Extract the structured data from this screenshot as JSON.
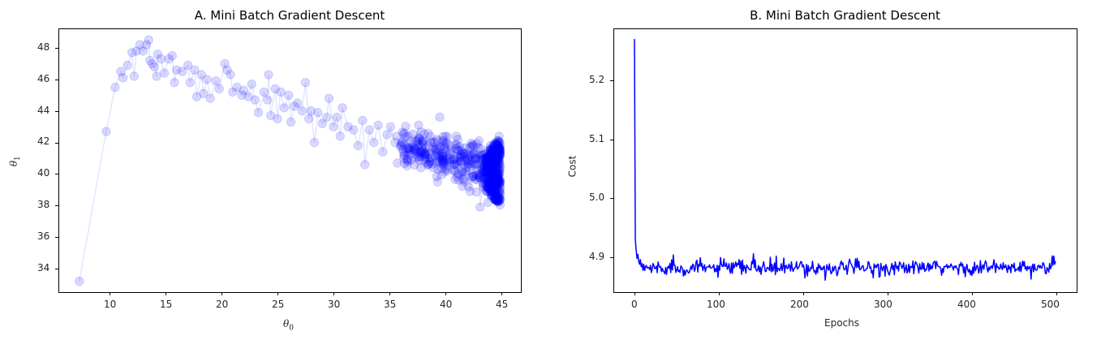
{
  "chart_data": [
    {
      "type": "scatter",
      "title": "A. Mini Batch Gradient Descent",
      "xlabel": "θ0",
      "ylabel": "θ1",
      "xlim": [
        5.3,
        46.6
      ],
      "ylim": [
        32.5,
        49.2
      ],
      "xticks": [
        10,
        15,
        20,
        25,
        30,
        35,
        40,
        45
      ],
      "yticks": [
        34,
        36,
        38,
        40,
        42,
        44,
        46,
        48
      ],
      "grid": false,
      "marker": "o",
      "color": "#0000ff",
      "alpha": 0.15,
      "connected": true,
      "path_points": [
        [
          7.3,
          33.2
        ],
        [
          9.7,
          42.7
        ],
        [
          10.5,
          45.5
        ],
        [
          11.0,
          46.5
        ],
        [
          11.2,
          46.1
        ],
        [
          11.6,
          46.9
        ],
        [
          12.0,
          47.7
        ],
        [
          12.2,
          46.2
        ],
        [
          12.4,
          47.8
        ],
        [
          12.7,
          48.2
        ],
        [
          13.0,
          47.8
        ],
        [
          13.3,
          48.2
        ],
        [
          13.5,
          48.5
        ],
        [
          13.6,
          47.2
        ],
        [
          13.8,
          47.0
        ],
        [
          14.0,
          46.8
        ],
        [
          14.2,
          46.2
        ],
        [
          14.3,
          47.6
        ],
        [
          14.6,
          47.3
        ],
        [
          14.9,
          46.4
        ],
        [
          15.3,
          47.3
        ],
        [
          15.6,
          47.5
        ],
        [
          15.8,
          45.8
        ],
        [
          16.0,
          46.6
        ],
        [
          16.5,
          46.5
        ],
        [
          17.0,
          46.9
        ],
        [
          17.2,
          45.8
        ],
        [
          17.6,
          46.6
        ],
        [
          17.8,
          44.9
        ],
        [
          18.2,
          46.3
        ],
        [
          18.4,
          45.1
        ],
        [
          18.7,
          46.0
        ],
        [
          19.0,
          44.8
        ],
        [
          19.5,
          45.9
        ],
        [
          19.8,
          45.4
        ],
        [
          20.3,
          47.0
        ],
        [
          20.5,
          46.6
        ],
        [
          20.8,
          46.3
        ],
        [
          21.0,
          45.2
        ],
        [
          21.4,
          45.5
        ],
        [
          21.8,
          45.0
        ],
        [
          22.0,
          45.3
        ],
        [
          22.4,
          44.9
        ],
        [
          22.7,
          45.7
        ],
        [
          23.0,
          44.7
        ],
        [
          23.3,
          43.9
        ],
        [
          23.8,
          45.2
        ],
        [
          24.1,
          44.7
        ],
        [
          24.2,
          46.3
        ],
        [
          24.4,
          43.7
        ],
        [
          24.8,
          45.4
        ],
        [
          25.0,
          43.5
        ],
        [
          25.3,
          45.2
        ],
        [
          25.6,
          44.2
        ],
        [
          26.0,
          45.0
        ],
        [
          26.2,
          43.3
        ],
        [
          26.5,
          44.3
        ],
        [
          26.8,
          44.5
        ],
        [
          27.2,
          44.0
        ],
        [
          27.5,
          45.8
        ],
        [
          27.8,
          43.5
        ],
        [
          28.0,
          44.0
        ],
        [
          28.3,
          42.0
        ],
        [
          28.6,
          43.9
        ],
        [
          29.0,
          43.2
        ],
        [
          29.4,
          43.6
        ],
        [
          29.6,
          44.8
        ],
        [
          30.0,
          43.0
        ],
        [
          30.3,
          43.6
        ],
        [
          30.6,
          42.4
        ],
        [
          30.8,
          44.2
        ],
        [
          31.3,
          43.0
        ],
        [
          31.8,
          42.8
        ],
        [
          32.2,
          41.8
        ],
        [
          32.6,
          43.4
        ],
        [
          32.8,
          40.6
        ],
        [
          33.2,
          42.8
        ],
        [
          33.6,
          42.0
        ],
        [
          34.0,
          43.1
        ],
        [
          34.4,
          41.4
        ],
        [
          34.8,
          42.5
        ],
        [
          35.1,
          43.0
        ],
        [
          35.5,
          42.0
        ],
        [
          36.0,
          41.8
        ],
        [
          36.3,
          41.0
        ],
        [
          36.7,
          42.4
        ],
        [
          37.2,
          41.6
        ],
        [
          37.6,
          43.1
        ],
        [
          37.8,
          40.4
        ],
        [
          38.2,
          41.6
        ],
        [
          38.6,
          40.8
        ],
        [
          39.0,
          42.0
        ],
        [
          39.3,
          39.5
        ],
        [
          39.7,
          41.3
        ],
        [
          40.0,
          42.4
        ],
        [
          40.4,
          41.0
        ],
        [
          40.8,
          40.2
        ],
        [
          41.2,
          41.5
        ],
        [
          41.6,
          39.7
        ],
        [
          42.0,
          41.0
        ],
        [
          42.2,
          38.9
        ],
        [
          42.6,
          40.6
        ],
        [
          43.0,
          42.1
        ],
        [
          43.1,
          37.9
        ],
        [
          43.5,
          40.1
        ],
        [
          43.8,
          38.2
        ],
        [
          44.0,
          41.8
        ],
        [
          44.3,
          39.0
        ],
        [
          44.5,
          42.0
        ],
        [
          44.8,
          42.4
        ]
      ],
      "dense_cluster": {
        "x_range": [
          43.3,
          44.9
        ],
        "y_range": [
          38.0,
          42.3
        ],
        "count": 420
      },
      "transition_band": {
        "x_range": [
          36.0,
          43.5
        ],
        "y_center_at_x_start": 41.9,
        "y_center_at_x_end": 40.4,
        "y_spread": 0.9,
        "count": 260
      }
    },
    {
      "type": "line",
      "title": "B. Mini Batch Gradient Descent",
      "xlabel": "Epochs",
      "ylabel": "Cost",
      "xlim": [
        -25,
        525
      ],
      "ylim": [
        4.843,
        5.29
      ],
      "xticks": [
        0,
        100,
        200,
        300,
        400,
        500
      ],
      "yticks": [
        4.9,
        5.0,
        5.1,
        5.2
      ],
      "grid": false,
      "color": "#0000ff",
      "series": [
        {
          "name": "cost",
          "x_start": 0,
          "x_end": 499,
          "initial_values": [
            5.27,
            4.93,
            4.912,
            4.898,
            4.905,
            4.893,
            4.888,
            4.896,
            4.884,
            4.889,
            4.878
          ],
          "steady_state_mean": 4.882,
          "steady_state_range": [
            4.862,
            4.905
          ],
          "notable_points": [
            {
              "epoch": 0,
              "value": 5.27
            },
            {
              "epoch": 1,
              "value": 4.93
            },
            {
              "epoch": 46,
              "value": 4.904
            },
            {
              "epoch": 141,
              "value": 4.906
            },
            {
              "epoch": 226,
              "value": 4.861
            },
            {
              "epoch": 470,
              "value": 4.863
            },
            {
              "epoch": 495,
              "value": 4.902
            },
            {
              "epoch": 499,
              "value": 4.893
            }
          ]
        }
      ]
    }
  ],
  "charts": {
    "left": {
      "title": "A. Mini Batch Gradient Descent",
      "xlabel_symbol": "θ",
      "xlabel_sub": "0",
      "ylabel_symbol": "θ",
      "ylabel_sub": "1",
      "xtick_labels": [
        "10",
        "15",
        "20",
        "25",
        "30",
        "35",
        "40",
        "45"
      ],
      "ytick_labels": [
        "48",
        "46",
        "44",
        "42",
        "40",
        "38",
        "36",
        "34"
      ]
    },
    "right": {
      "title": "B. Mini Batch Gradient Descent",
      "xlabel": "Epochs",
      "ylabel": "Cost",
      "xtick_labels": [
        "0",
        "100",
        "200",
        "300",
        "400",
        "500"
      ],
      "ytick_labels": [
        "5.2",
        "5.1",
        "5.0",
        "4.9"
      ]
    }
  }
}
